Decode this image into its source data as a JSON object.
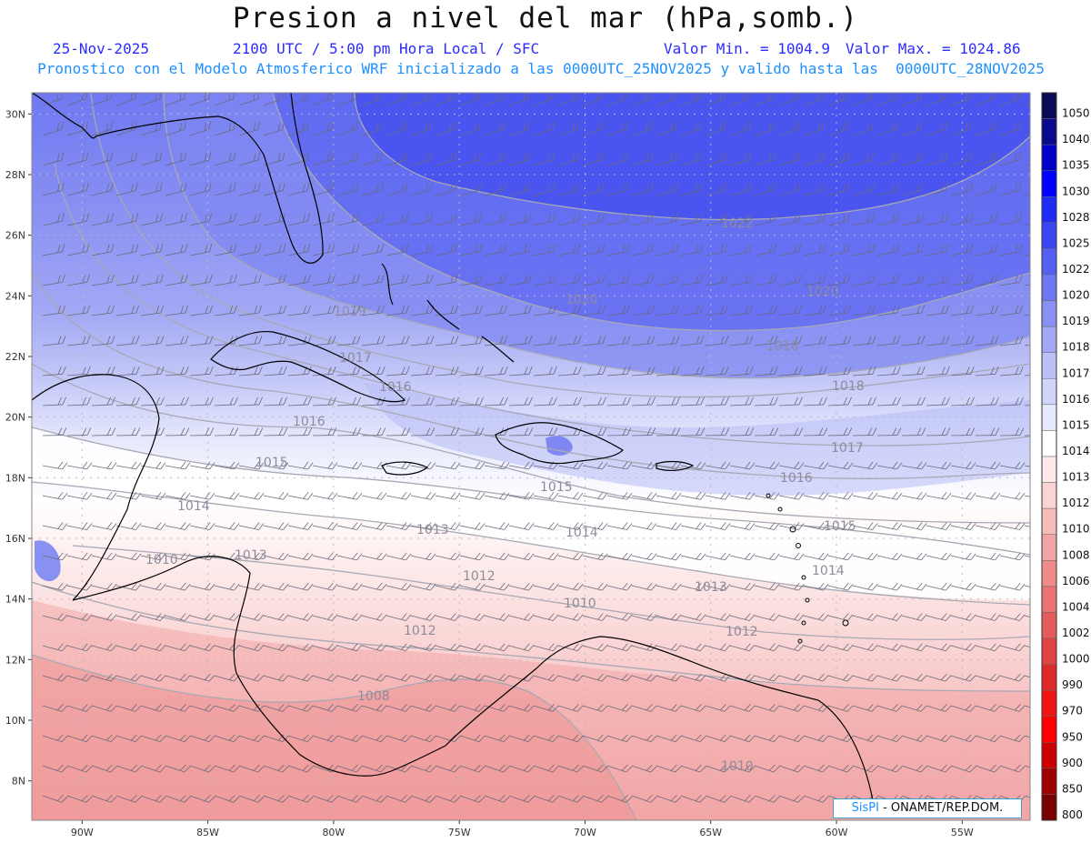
{
  "title": "Presion a nivel del mar (hPa,somb.)",
  "header": {
    "date": "25-Nov-2025",
    "time": "2100 UTC / 5:00 pm Hora Local / SFC",
    "vmin": "Valor Min. = 1004.9",
    "vmax": "Valor Max. = 1024.86",
    "subtitle": "Pronostico con el Modelo Atmosferico WRF inicializado a las 0000UTC_25NOV2025 y valido hasta las  0000UTC_28NOV2025"
  },
  "credit": {
    "brand": "SisPI",
    "org": "- ONAMET/REP.DOM."
  },
  "map": {
    "lat_range": [
      6.7,
      30.7
    ],
    "lon_range": [
      -92.0,
      -52.3
    ],
    "lat_labels": [
      "30N",
      "28N",
      "26N",
      "24N",
      "22N",
      "20N",
      "18N",
      "16N",
      "14N",
      "12N",
      "10N",
      "8N"
    ],
    "lon_labels": [
      "90W",
      "85W",
      "80W",
      "75W",
      "70W",
      "65W",
      "60W",
      "55W"
    ],
    "colorbar": [
      "1050",
      "1040",
      "1035",
      "1030",
      "1028",
      "1025",
      "1022",
      "1020",
      "1019",
      "1018",
      "1017",
      "1016",
      "1015",
      "1014",
      "1013",
      "1012",
      "1010",
      "1008",
      "1006",
      "1004",
      "1002",
      "1000",
      "990",
      "970",
      "950",
      "900",
      "850",
      "800"
    ],
    "colorbar_colors": [
      "#0b0b55",
      "#0a0a8c",
      "#0000c8",
      "#0000ff",
      "#1e2cf5",
      "#3a46f2",
      "#5560f2",
      "#6e78f2",
      "#8890f2",
      "#a2a8f4",
      "#babff6",
      "#d2d5f9",
      "#e7e9fc",
      "#ffffff",
      "#fde9e9",
      "#fad4d4",
      "#f6bcbc",
      "#f2a4a4",
      "#ee8c8c",
      "#ea7474",
      "#e65c5c",
      "#e24444",
      "#e02a2a",
      "#ef1414",
      "#ff0000",
      "#cc0000",
      "#a00000",
      "#780000"
    ],
    "isobar_labels": [
      "1022",
      "1020",
      "1020",
      "1019",
      "1018",
      "1018",
      "1017",
      "1017",
      "1016",
      "1016",
      "1016",
      "1015",
      "1015",
      "1015",
      "1014",
      "1014",
      "1014",
      "1013",
      "1013",
      "1013",
      "1012",
      "1012",
      "1012",
      "1010",
      "1010",
      "1008",
      "1010"
    ]
  }
}
